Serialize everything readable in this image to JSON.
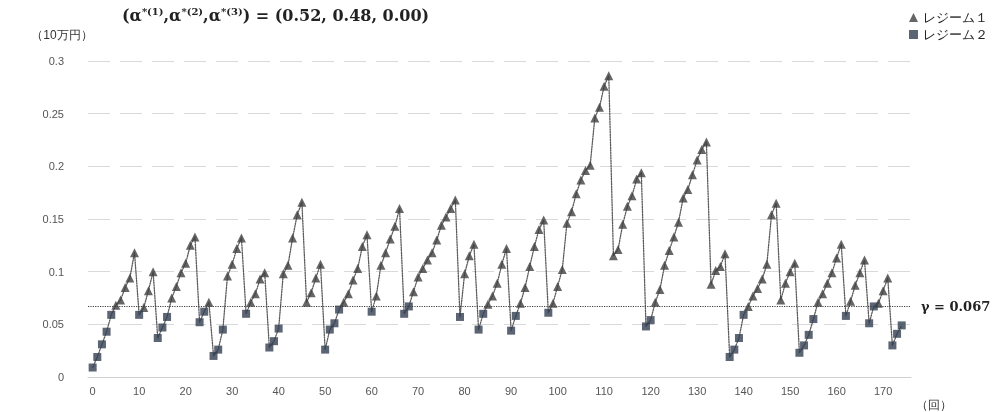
{
  "chart_data": {
    "type": "line",
    "annotations": [
      "(α$^{*(1)}$,α$^{*(2)}$,α$^{*(3)}$) = (0.52, 0.48, 0.00)"
    ],
    "ylabel": "（10万円）",
    "xlabel": "（回）",
    "x": [
      0,
      1,
      2,
      3,
      4,
      5,
      6,
      7,
      8,
      9,
      10,
      11,
      12,
      13,
      14,
      15,
      16,
      17,
      18,
      19,
      20,
      21,
      22,
      23,
      24,
      25,
      26,
      27,
      28,
      29,
      30,
      31,
      32,
      33,
      34,
      35,
      36,
      37,
      38,
      39,
      40,
      41,
      42,
      43,
      44,
      45,
      46,
      47,
      48,
      49,
      50,
      51,
      52,
      53,
      54,
      55,
      56,
      57,
      58,
      59,
      60,
      61,
      62,
      63,
      64,
      65,
      66,
      67,
      68,
      69,
      70,
      71,
      72,
      73,
      74,
      75,
      76,
      77,
      78,
      79,
      80,
      81,
      82,
      83,
      84,
      85,
      86,
      87,
      88,
      89,
      90,
      91,
      92,
      93,
      94,
      95,
      96,
      97,
      98,
      99,
      100,
      101,
      102,
      103,
      104,
      105,
      106,
      107,
      108,
      109,
      110,
      111,
      112,
      113,
      114,
      115,
      116,
      117,
      118,
      119,
      120,
      121,
      122,
      123,
      124,
      125,
      126,
      127,
      128,
      129,
      130,
      131,
      132,
      133,
      134,
      135,
      136,
      137,
      138,
      139,
      140,
      141,
      142,
      143,
      144,
      145,
      146,
      147,
      148,
      149,
      150,
      151,
      152,
      153,
      154,
      155,
      156,
      157,
      158,
      159,
      160,
      161,
      162,
      163,
      164,
      165,
      166,
      167,
      168,
      169,
      170,
      171,
      172,
      173,
      174
    ],
    "series": [
      {
        "color": "#595959",
        "marker": "none",
        "line_style": "dotted",
        "values": [
          0.009,
          0.019,
          0.031,
          0.043,
          0.059,
          0.068,
          0.073,
          0.085,
          0.094,
          0.118,
          0.059,
          0.066,
          0.082,
          0.1,
          0.037,
          0.047,
          0.057,
          0.075,
          0.086,
          0.099,
          0.108,
          0.125,
          0.133,
          0.052,
          0.062,
          0.071,
          0.02,
          0.026,
          0.045,
          0.096,
          0.107,
          0.122,
          0.132,
          0.06,
          0.071,
          0.079,
          0.093,
          0.099,
          0.028,
          0.034,
          0.046,
          0.098,
          0.106,
          0.132,
          0.154,
          0.166,
          0.071,
          0.08,
          0.094,
          0.107,
          0.026,
          0.045,
          0.051,
          0.064,
          0.071,
          0.079,
          0.092,
          0.103,
          0.124,
          0.135,
          0.062,
          0.077,
          0.106,
          0.118,
          0.131,
          0.143,
          0.16,
          0.06,
          0.067,
          0.081,
          0.095,
          0.103,
          0.111,
          0.118,
          0.13,
          0.144,
          0.152,
          0.16,
          0.168,
          0.057,
          0.098,
          0.115,
          0.126,
          0.045,
          0.06,
          0.069,
          0.077,
          0.089,
          0.107,
          0.122,
          0.044,
          0.058,
          0.07,
          0.085,
          0.105,
          0.124,
          0.14,
          0.149,
          0.061,
          0.07,
          0.086,
          0.102,
          0.146,
          0.157,
          0.174,
          0.187,
          0.196,
          0.201,
          0.246,
          0.256,
          0.276,
          0.286,
          0.115,
          0.121,
          0.145,
          0.162,
          0.172,
          0.188,
          0.194,
          0.048,
          0.054,
          0.071,
          0.083,
          0.106,
          0.12,
          0.133,
          0.147,
          0.17,
          0.178,
          0.192,
          0.206,
          0.216,
          0.223,
          0.088,
          0.101,
          0.105,
          0.117,
          0.019,
          0.026,
          0.037,
          0.059,
          0.067,
          0.077,
          0.084,
          0.093,
          0.107,
          0.154,
          0.165,
          0.073,
          0.089,
          0.1,
          0.108,
          0.023,
          0.03,
          0.04,
          0.055,
          0.071,
          0.079,
          0.089,
          0.099,
          0.113,
          0.126,
          0.058,
          0.072,
          0.087,
          0.099,
          0.111,
          0.051,
          0.067,
          0.07,
          0.082,
          0.094,
          0.03,
          0.041,
          0.049
        ]
      },
      {
        "name": "レジーム１",
        "type": "scatter",
        "color": "#404040",
        "marker": "triangle",
        "values": [
          null,
          null,
          null,
          null,
          null,
          0.068,
          0.073,
          0.085,
          0.094,
          0.118,
          null,
          0.066,
          0.082,
          0.1,
          null,
          null,
          null,
          0.075,
          0.086,
          0.099,
          0.108,
          0.125,
          0.133,
          null,
          null,
          0.071,
          null,
          null,
          null,
          0.096,
          0.107,
          0.122,
          0.132,
          null,
          0.071,
          0.079,
          0.093,
          0.099,
          null,
          null,
          null,
          0.098,
          0.106,
          0.132,
          0.154,
          0.166,
          0.071,
          0.08,
          0.094,
          0.107,
          null,
          null,
          null,
          null,
          0.071,
          0.079,
          0.092,
          0.103,
          0.124,
          0.135,
          null,
          0.077,
          0.106,
          0.118,
          0.131,
          0.143,
          0.16,
          null,
          null,
          0.081,
          0.095,
          0.103,
          0.111,
          0.118,
          0.13,
          0.144,
          0.152,
          0.16,
          0.168,
          null,
          0.098,
          0.115,
          0.126,
          null,
          null,
          0.069,
          0.077,
          0.089,
          0.107,
          0.122,
          null,
          null,
          0.07,
          0.085,
          0.105,
          0.124,
          0.14,
          0.149,
          null,
          0.07,
          0.086,
          0.102,
          0.146,
          0.157,
          0.174,
          0.187,
          0.196,
          0.201,
          0.246,
          0.256,
          0.276,
          0.286,
          0.115,
          0.121,
          0.145,
          0.162,
          0.172,
          0.188,
          0.194,
          null,
          null,
          0.071,
          0.083,
          0.106,
          0.12,
          0.133,
          0.147,
          0.17,
          0.178,
          0.192,
          0.206,
          0.216,
          0.223,
          0.088,
          0.101,
          0.105,
          0.117,
          null,
          null,
          null,
          null,
          0.067,
          0.077,
          0.084,
          0.093,
          0.107,
          0.154,
          0.165,
          0.073,
          0.089,
          0.1,
          0.108,
          null,
          null,
          null,
          null,
          0.071,
          0.079,
          0.089,
          0.099,
          0.113,
          0.126,
          null,
          0.072,
          0.087,
          0.099,
          0.111,
          null,
          null,
          0.07,
          0.082,
          0.094,
          null,
          null,
          null
        ]
      },
      {
        "name": "レジーム２",
        "type": "scatter",
        "color": "#333f50",
        "marker": "square",
        "values": [
          0.009,
          0.019,
          0.031,
          0.043,
          0.059,
          null,
          null,
          null,
          null,
          null,
          0.059,
          null,
          null,
          null,
          0.037,
          0.047,
          0.057,
          null,
          null,
          null,
          null,
          null,
          null,
          0.052,
          0.062,
          null,
          0.02,
          0.026,
          0.045,
          null,
          null,
          null,
          null,
          0.06,
          null,
          null,
          null,
          null,
          0.028,
          0.034,
          0.046,
          null,
          null,
          null,
          null,
          null,
          null,
          null,
          null,
          null,
          0.026,
          0.045,
          0.051,
          0.064,
          null,
          null,
          null,
          null,
          null,
          null,
          0.062,
          null,
          null,
          null,
          null,
          null,
          null,
          0.06,
          0.067,
          null,
          null,
          null,
          null,
          null,
          null,
          null,
          null,
          null,
          null,
          0.057,
          null,
          null,
          null,
          0.045,
          0.06,
          null,
          null,
          null,
          null,
          null,
          0.044,
          0.058,
          null,
          null,
          null,
          null,
          null,
          null,
          0.061,
          null,
          null,
          null,
          null,
          null,
          null,
          null,
          null,
          null,
          null,
          null,
          null,
          null,
          null,
          null,
          null,
          null,
          null,
          null,
          null,
          0.048,
          0.054,
          null,
          null,
          null,
          null,
          null,
          null,
          null,
          null,
          null,
          null,
          null,
          null,
          null,
          null,
          null,
          null,
          0.019,
          0.026,
          0.037,
          0.059,
          null,
          null,
          null,
          null,
          null,
          null,
          null,
          null,
          null,
          null,
          null,
          0.023,
          0.03,
          0.04,
          0.055,
          null,
          null,
          null,
          null,
          null,
          null,
          0.058,
          null,
          null,
          null,
          null,
          0.051,
          0.067,
          null,
          null,
          null,
          0.03,
          0.041,
          0.049
        ]
      }
    ],
    "xlim": [
      -1,
      176
    ],
    "xticks": [
      0,
      10,
      20,
      30,
      40,
      50,
      60,
      70,
      80,
      90,
      100,
      110,
      120,
      130,
      140,
      150,
      160,
      170
    ],
    "ylim": [
      0,
      0.3
    ],
    "yticks": [
      0,
      0.05,
      0.1,
      0.15,
      0.2,
      0.25,
      0.3
    ],
    "ref_lines": [
      {
        "axis": "y",
        "value": 0.067,
        "label": "γ = 0.067",
        "color": "#404040",
        "line_style": "dotted"
      }
    ],
    "grid": "y",
    "legend": "top right"
  }
}
